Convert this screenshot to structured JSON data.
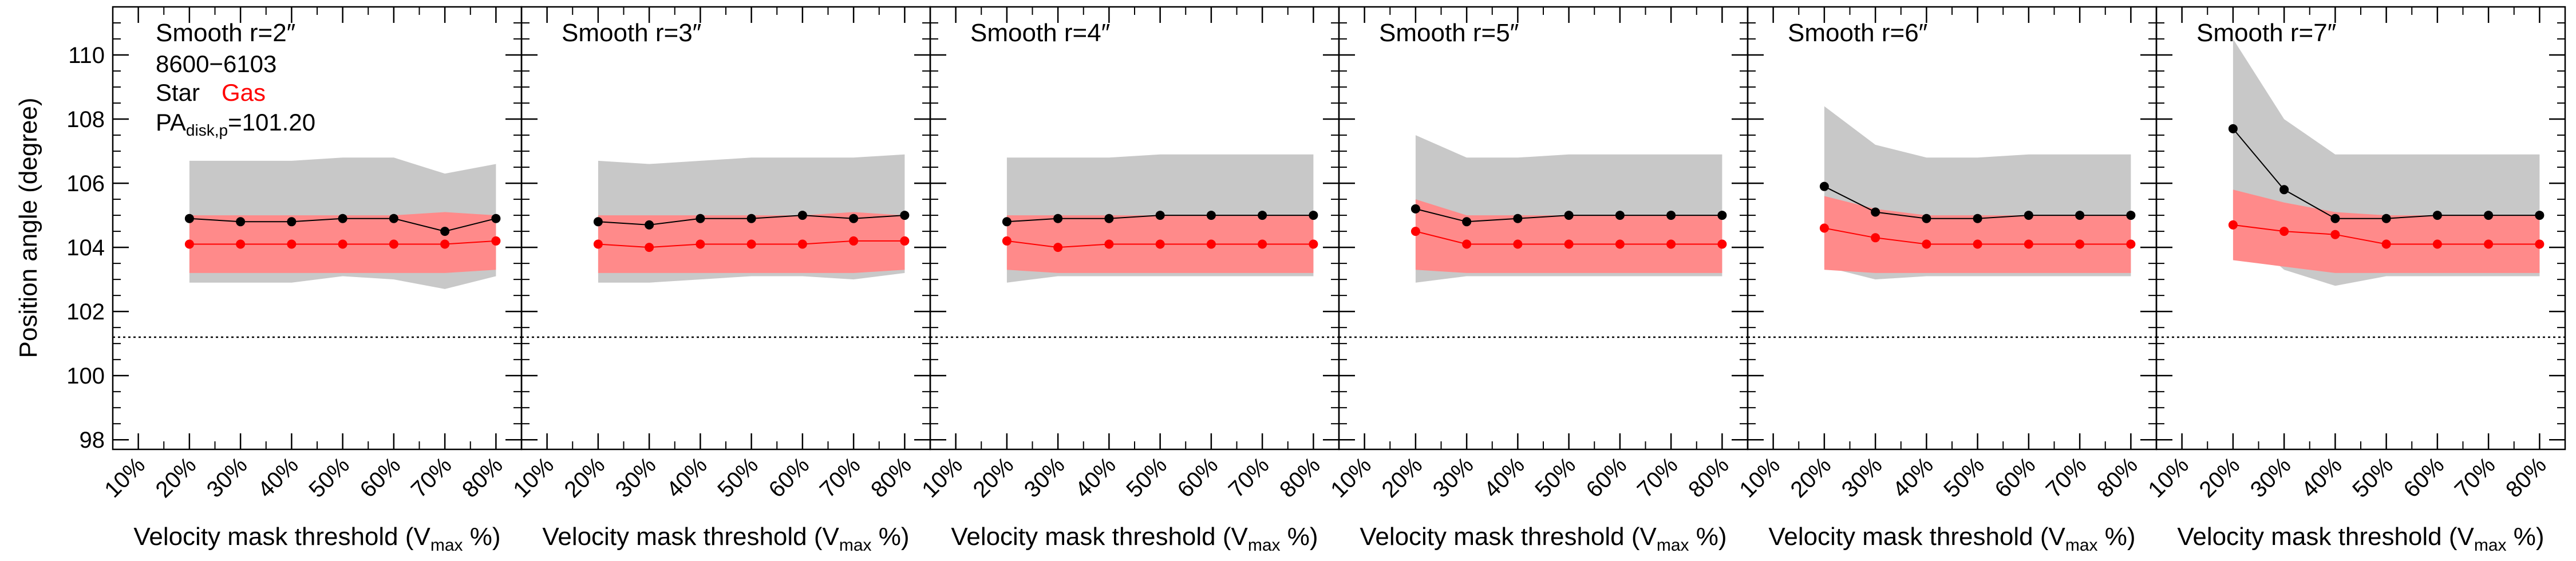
{
  "figure": {
    "ylabel": "Position angle (degree)",
    "xlabel_prefix": "Velocity mask threshold (V",
    "xlabel_sub": "max",
    "xlabel_suffix": " %)",
    "info": {
      "line1": "8600−6103",
      "star_label": "Star",
      "gas_label": "Gas",
      "pa_prefix": "PA",
      "pa_sub": "disk,p",
      "pa_value": "=101.20"
    }
  },
  "colors": {
    "star": "#000000",
    "gas": "#ff0000",
    "star_band": "#c8c8c8",
    "gas_band": "#ff8a8a",
    "reference_line": "#000000"
  },
  "chart_data": [
    {
      "type": "line",
      "title": "Smooth r=2″",
      "x_categories": [
        "10%",
        "20%",
        "30%",
        "40%",
        "50%",
        "60%",
        "70%",
        "80%"
      ],
      "x": [
        20,
        30,
        40,
        50,
        60,
        70,
        80
      ],
      "ylim": [
        97.7,
        111.5
      ],
      "yticks": [
        98,
        100,
        102,
        104,
        106,
        108,
        110
      ],
      "reference_line": 101.2,
      "series": [
        {
          "name": "Star",
          "values": [
            104.9,
            104.8,
            104.8,
            104.9,
            104.9,
            104.5,
            104.9
          ],
          "band_low": [
            102.9,
            102.9,
            102.9,
            103.1,
            103.0,
            102.7,
            103.1
          ],
          "band_high": [
            106.7,
            106.7,
            106.7,
            106.8,
            106.8,
            106.3,
            106.6
          ]
        },
        {
          "name": "Gas",
          "values": [
            104.1,
            104.1,
            104.1,
            104.1,
            104.1,
            104.1,
            104.2
          ],
          "band_low": [
            103.2,
            103.2,
            103.2,
            103.2,
            103.2,
            103.2,
            103.3
          ],
          "band_high": [
            105.0,
            105.0,
            105.0,
            105.0,
            105.0,
            105.1,
            105.0
          ]
        }
      ]
    },
    {
      "type": "line",
      "title": "Smooth r=3″",
      "x_categories": [
        "10%",
        "20%",
        "30%",
        "40%",
        "50%",
        "60%",
        "70%",
        "80%"
      ],
      "x": [
        20,
        30,
        40,
        50,
        60,
        70,
        80
      ],
      "ylim": [
        97.7,
        111.5
      ],
      "yticks": [
        98,
        100,
        102,
        104,
        106,
        108,
        110
      ],
      "reference_line": 101.2,
      "series": [
        {
          "name": "Star",
          "values": [
            104.8,
            104.7,
            104.9,
            104.9,
            105.0,
            104.9,
            105.0
          ],
          "band_low": [
            102.9,
            102.9,
            103.0,
            103.1,
            103.1,
            103.0,
            103.2
          ],
          "band_high": [
            106.7,
            106.6,
            106.7,
            106.8,
            106.8,
            106.8,
            106.9
          ]
        },
        {
          "name": "Gas",
          "values": [
            104.1,
            104.0,
            104.1,
            104.1,
            104.1,
            104.2,
            104.2
          ],
          "band_low": [
            103.2,
            103.2,
            103.2,
            103.2,
            103.2,
            103.2,
            103.3
          ],
          "band_high": [
            105.0,
            105.0,
            105.0,
            105.0,
            105.0,
            105.1,
            105.0
          ]
        }
      ]
    },
    {
      "type": "line",
      "title": "Smooth r=4″",
      "x_categories": [
        "10%",
        "20%",
        "30%",
        "40%",
        "50%",
        "60%",
        "70%",
        "80%"
      ],
      "x": [
        20,
        30,
        40,
        50,
        60,
        70,
        80
      ],
      "ylim": [
        97.7,
        111.5
      ],
      "yticks": [
        98,
        100,
        102,
        104,
        106,
        108,
        110
      ],
      "reference_line": 101.2,
      "series": [
        {
          "name": "Star",
          "values": [
            104.8,
            104.9,
            104.9,
            105.0,
            105.0,
            105.0,
            105.0
          ],
          "band_low": [
            102.9,
            103.1,
            103.1,
            103.1,
            103.1,
            103.1,
            103.1
          ],
          "band_high": [
            106.8,
            106.8,
            106.8,
            106.9,
            106.9,
            106.9,
            106.9
          ]
        },
        {
          "name": "Gas",
          "values": [
            104.2,
            104.0,
            104.1,
            104.1,
            104.1,
            104.1,
            104.1
          ],
          "band_low": [
            103.3,
            103.2,
            103.2,
            103.2,
            103.2,
            103.2,
            103.2
          ],
          "band_high": [
            105.0,
            105.0,
            105.0,
            105.0,
            105.0,
            105.0,
            105.0
          ]
        }
      ]
    },
    {
      "type": "line",
      "title": "Smooth r=5″",
      "x_categories": [
        "10%",
        "20%",
        "30%",
        "40%",
        "50%",
        "60%",
        "70%",
        "80%"
      ],
      "x": [
        20,
        30,
        40,
        50,
        60,
        70,
        80
      ],
      "ylim": [
        97.7,
        111.5
      ],
      "yticks": [
        98,
        100,
        102,
        104,
        106,
        108,
        110
      ],
      "reference_line": 101.2,
      "series": [
        {
          "name": "Star",
          "values": [
            105.2,
            104.8,
            104.9,
            105.0,
            105.0,
            105.0,
            105.0
          ],
          "band_low": [
            102.9,
            103.1,
            103.1,
            103.1,
            103.1,
            103.1,
            103.1
          ],
          "band_high": [
            107.5,
            106.8,
            106.8,
            106.9,
            106.9,
            106.9,
            106.9
          ]
        },
        {
          "name": "Gas",
          "values": [
            104.5,
            104.1,
            104.1,
            104.1,
            104.1,
            104.1,
            104.1
          ],
          "band_low": [
            103.3,
            103.2,
            103.2,
            103.2,
            103.2,
            103.2,
            103.2
          ],
          "band_high": [
            105.5,
            105.0,
            105.0,
            105.0,
            105.0,
            105.0,
            105.0
          ]
        }
      ]
    },
    {
      "type": "line",
      "title": "Smooth r=6″",
      "x_categories": [
        "10%",
        "20%",
        "30%",
        "40%",
        "50%",
        "60%",
        "70%",
        "80%"
      ],
      "x": [
        20,
        30,
        40,
        50,
        60,
        70,
        80
      ],
      "ylim": [
        97.7,
        111.5
      ],
      "yticks": [
        98,
        100,
        102,
        104,
        106,
        108,
        110
      ],
      "reference_line": 101.2,
      "series": [
        {
          "name": "Star",
          "values": [
            105.9,
            105.1,
            104.9,
            104.9,
            105.0,
            105.0,
            105.0
          ],
          "band_low": [
            103.4,
            103.0,
            103.1,
            103.1,
            103.1,
            103.1,
            103.1
          ],
          "band_high": [
            108.4,
            107.2,
            106.8,
            106.8,
            106.9,
            106.9,
            106.9
          ]
        },
        {
          "name": "Gas",
          "values": [
            104.6,
            104.3,
            104.1,
            104.1,
            104.1,
            104.1,
            104.1
          ],
          "band_low": [
            103.3,
            103.2,
            103.2,
            103.2,
            103.2,
            103.2,
            103.2
          ],
          "band_high": [
            105.6,
            105.2,
            105.0,
            105.0,
            105.0,
            105.0,
            105.0
          ]
        }
      ]
    },
    {
      "type": "line",
      "title": "Smooth r=7″",
      "x_categories": [
        "10%",
        "20%",
        "30%",
        "40%",
        "50%",
        "60%",
        "70%",
        "80%"
      ],
      "x": [
        20,
        30,
        40,
        50,
        60,
        70,
        80
      ],
      "ylim": [
        97.7,
        111.5
      ],
      "yticks": [
        98,
        100,
        102,
        104,
        106,
        108,
        110
      ],
      "reference_line": 101.2,
      "series": [
        {
          "name": "Star",
          "values": [
            107.7,
            105.8,
            104.9,
            104.9,
            105.0,
            105.0,
            105.0
          ],
          "band_low": [
            104.7,
            103.3,
            102.8,
            103.1,
            103.1,
            103.1,
            103.1
          ],
          "band_high": [
            110.5,
            108.0,
            106.9,
            106.9,
            106.9,
            106.9,
            106.9
          ]
        },
        {
          "name": "Gas",
          "values": [
            104.7,
            104.5,
            104.4,
            104.1,
            104.1,
            104.1,
            104.1
          ],
          "band_low": [
            103.6,
            103.4,
            103.2,
            103.2,
            103.2,
            103.2,
            103.2
          ],
          "band_high": [
            105.8,
            105.4,
            105.1,
            105.0,
            105.0,
            105.0,
            105.0
          ]
        }
      ]
    }
  ]
}
